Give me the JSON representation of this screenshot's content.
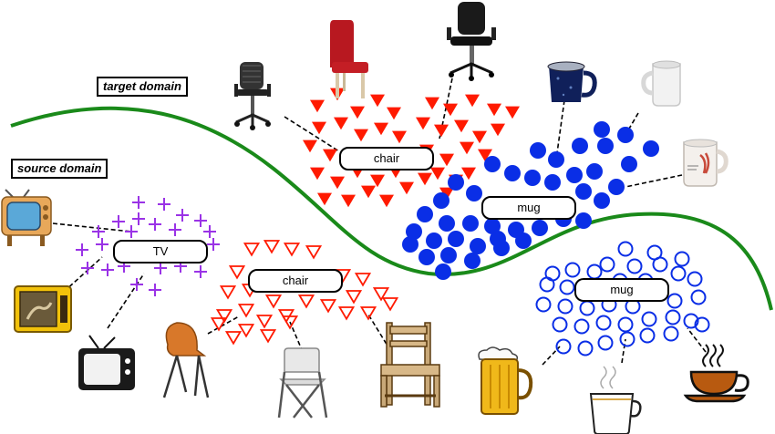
{
  "domains": {
    "target": "target domain",
    "source": "source domain"
  },
  "clusters": {
    "target_chair": "chair",
    "target_mug": "mug",
    "source_tv": "TV",
    "source_chair": "chair",
    "source_mug": "mug"
  },
  "colors": {
    "boundary": "#1a8a1a",
    "chair": "#ff1a00",
    "mug": "#0a2ee6",
    "tv": "#9a33e6",
    "leader": "#000000"
  },
  "icons": {
    "target": [
      "office-chair-mesh-icon",
      "red-dining-chair-icon",
      "office-chair-black-icon",
      "blue-enamel-mug-icon",
      "white-mug-icon",
      "printed-mug-icon"
    ],
    "source": [
      "retro-tv-icon",
      "yellow-tv-icon",
      "black-tv-icon",
      "orange-shell-chair-icon",
      "folding-chair-icon",
      "wooden-chair-icon",
      "beer-mug-icon",
      "coffee-cup-icon",
      "tea-cup-icon"
    ]
  }
}
